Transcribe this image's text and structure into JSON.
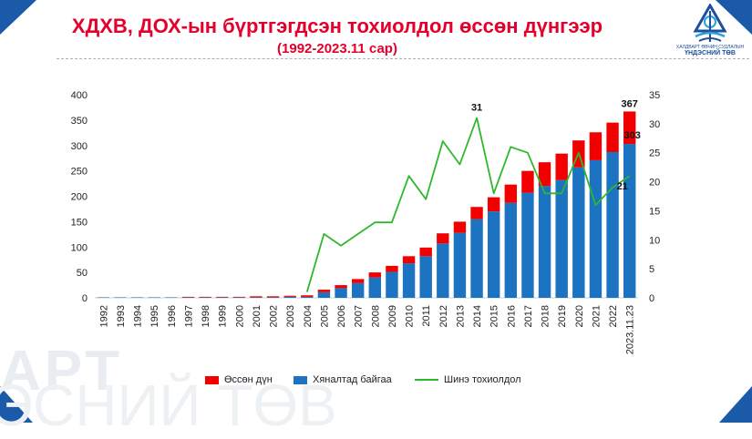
{
  "header": {
    "title": "ХДХВ, ДОХ-ын бүртгэгдсэн тохиолдол өссөн дүнгээр",
    "subtitle": "(1992-2023.11 сар)"
  },
  "logo": {
    "line1": "ХАЛДВАРТ ӨВЧИН СУДЛАЛЫН",
    "line2": "ҮНДЭСНИЙ ТӨВ"
  },
  "watermark": {
    "line1": "АРТ",
    "line2": "ЭСНИЙ ТӨВ"
  },
  "colors": {
    "accent": "#e4002b",
    "bar_bottom": "#1b73c2",
    "bar_top": "#f20000",
    "line": "#2eb82e"
  },
  "chart_data": {
    "type": "bar",
    "stacked": true,
    "categories": [
      "1992",
      "1993",
      "1994",
      "1995",
      "1996",
      "1997",
      "1998",
      "1999",
      "2000",
      "2001",
      "2002",
      "2003",
      "2004",
      "2005",
      "2006",
      "2007",
      "2008",
      "2009",
      "2010",
      "2011",
      "2012",
      "2013",
      "2014",
      "2015",
      "2016",
      "2017",
      "2018",
      "2019",
      "2020",
      "2021",
      "2022",
      "2023.11.23"
    ],
    "series": [
      {
        "name": "Хяналтад байгаа",
        "type": "bar",
        "axis": "left",
        "color": "#1b73c2",
        "values": [
          1,
          1,
          1,
          1,
          1,
          1,
          1,
          1,
          1,
          1,
          1,
          2,
          2,
          11,
          19,
          29,
          40,
          51,
          68,
          82,
          107,
          128,
          155,
          170,
          187,
          207,
          220,
          232,
          257,
          271,
          287,
          303
        ]
      },
      {
        "name": "Өссөн дүн",
        "type": "bar",
        "axis": "left",
        "color": "#f20000",
        "values": [
          0,
          0,
          0,
          0,
          0,
          1,
          1,
          1,
          1,
          2,
          2,
          2,
          3,
          5,
          6,
          8,
          10,
          12,
          14,
          17,
          20,
          22,
          24,
          28,
          36,
          43,
          47,
          52,
          53,
          55,
          58,
          64
        ]
      },
      {
        "name": "Шинэ тохиолдол",
        "type": "line",
        "axis": "right",
        "color": "#2eb82e",
        "values": [
          null,
          null,
          null,
          null,
          null,
          null,
          null,
          null,
          null,
          null,
          null,
          null,
          1,
          11,
          9,
          11,
          13,
          13,
          21,
          17,
          27,
          23,
          31,
          18,
          26,
          25,
          18,
          18,
          25,
          16,
          19,
          21
        ]
      }
    ],
    "left_axis": {
      "min": 0,
      "max": 400,
      "ticks": [
        0,
        50,
        100,
        150,
        200,
        250,
        300,
        350,
        400
      ]
    },
    "right_axis": {
      "min": 0,
      "max": 35,
      "ticks": [
        0,
        5,
        10,
        15,
        20,
        25,
        30,
        35
      ]
    },
    "annotations": [
      {
        "label": "31",
        "series": "Шинэ тохиолдол",
        "category": "2014"
      },
      {
        "label": "367",
        "series": "total",
        "category": "2023.11.23"
      },
      {
        "label": "303",
        "series": "Хяналтад байгаа",
        "category": "2023.11.23"
      },
      {
        "label": "21",
        "series": "Шинэ тохиолдол",
        "category": "2023.11.23"
      }
    ],
    "legend": {
      "position": "bottom",
      "items": [
        "Өссөн дүн",
        "Хяналтад байгаа",
        "Шинэ тохиолдол"
      ]
    },
    "grid": false
  }
}
